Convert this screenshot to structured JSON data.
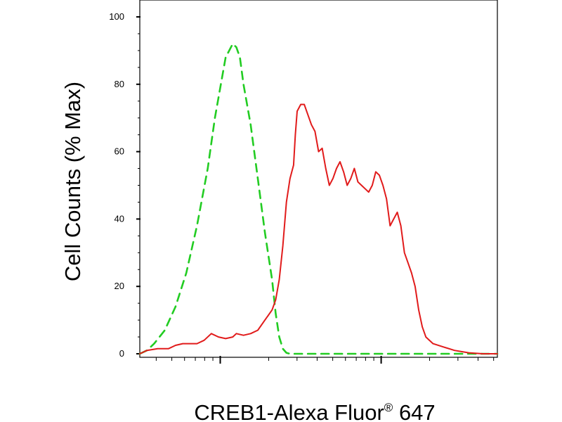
{
  "chart_data": {
    "type": "line",
    "title": "",
    "xlabel": {
      "main": "CREB1-Alexa Fluor",
      "sup": "®",
      "tail": " 647"
    },
    "ylabel": "Cell Counts (% Max)",
    "xscale": "log",
    "xlim": [
      0,
      1
    ],
    "ylim": [
      0,
      100
    ],
    "yticks": [
      "0",
      "20",
      "40",
      "60",
      "80",
      "100"
    ],
    "grid": false,
    "legend": "none",
    "series": [
      {
        "color": "#22cc22",
        "style": "dashed",
        "points": [
          [
            0.0,
            0
          ],
          [
            0.02,
            1
          ],
          [
            0.04,
            3
          ],
          [
            0.07,
            7
          ],
          [
            0.1,
            14
          ],
          [
            0.13,
            24
          ],
          [
            0.16,
            38
          ],
          [
            0.19,
            55
          ],
          [
            0.21,
            70
          ],
          [
            0.23,
            82
          ],
          [
            0.24,
            88
          ],
          [
            0.25,
            90
          ],
          [
            0.26,
            92
          ],
          [
            0.27,
            91
          ],
          [
            0.28,
            88
          ],
          [
            0.29,
            80
          ],
          [
            0.31,
            68
          ],
          [
            0.33,
            52
          ],
          [
            0.35,
            36
          ],
          [
            0.37,
            22
          ],
          [
            0.38,
            12
          ],
          [
            0.39,
            5
          ],
          [
            0.4,
            1.5
          ],
          [
            0.41,
            0.3
          ],
          [
            0.42,
            0
          ],
          [
            1.0,
            0
          ]
        ]
      },
      {
        "color": "#e11b1b",
        "style": "solid",
        "points": [
          [
            0.0,
            0
          ],
          [
            0.02,
            1
          ],
          [
            0.05,
            1.5
          ],
          [
            0.08,
            1.5
          ],
          [
            0.1,
            2.5
          ],
          [
            0.12,
            3
          ],
          [
            0.16,
            3
          ],
          [
            0.18,
            4
          ],
          [
            0.2,
            6
          ],
          [
            0.22,
            5
          ],
          [
            0.24,
            4.5
          ],
          [
            0.26,
            5
          ],
          [
            0.27,
            6
          ],
          [
            0.29,
            5.5
          ],
          [
            0.31,
            6
          ],
          [
            0.33,
            7
          ],
          [
            0.35,
            10
          ],
          [
            0.37,
            13
          ],
          [
            0.38,
            16
          ],
          [
            0.39,
            22
          ],
          [
            0.4,
            32
          ],
          [
            0.41,
            45
          ],
          [
            0.42,
            52
          ],
          [
            0.43,
            56
          ],
          [
            0.435,
            65
          ],
          [
            0.44,
            72
          ],
          [
            0.45,
            74
          ],
          [
            0.46,
            74
          ],
          [
            0.47,
            71
          ],
          [
            0.48,
            68
          ],
          [
            0.49,
            66
          ],
          [
            0.5,
            60
          ],
          [
            0.51,
            61
          ],
          [
            0.52,
            55
          ],
          [
            0.53,
            50
          ],
          [
            0.54,
            52
          ],
          [
            0.55,
            55
          ],
          [
            0.56,
            57
          ],
          [
            0.57,
            54
          ],
          [
            0.58,
            50
          ],
          [
            0.59,
            52
          ],
          [
            0.6,
            55
          ],
          [
            0.61,
            51
          ],
          [
            0.62,
            50
          ],
          [
            0.63,
            49
          ],
          [
            0.64,
            48
          ],
          [
            0.65,
            50
          ],
          [
            0.66,
            54
          ],
          [
            0.67,
            53
          ],
          [
            0.68,
            50
          ],
          [
            0.69,
            46
          ],
          [
            0.7,
            38
          ],
          [
            0.71,
            40
          ],
          [
            0.72,
            42
          ],
          [
            0.73,
            38
          ],
          [
            0.74,
            30
          ],
          [
            0.75,
            27
          ],
          [
            0.76,
            24
          ],
          [
            0.77,
            20
          ],
          [
            0.78,
            13
          ],
          [
            0.79,
            8
          ],
          [
            0.8,
            5
          ],
          [
            0.82,
            3
          ],
          [
            0.85,
            2
          ],
          [
            0.88,
            1
          ],
          [
            0.92,
            0.3
          ],
          [
            0.96,
            0
          ],
          [
            1.0,
            0
          ]
        ]
      }
    ]
  }
}
